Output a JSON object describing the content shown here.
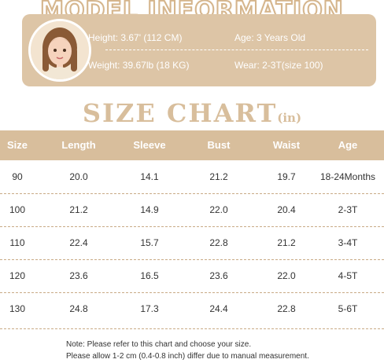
{
  "model": {
    "title": "MODEL INFORMATION",
    "height": "Height: 3.67' (112 CM)",
    "age": "Age: 3 Years Old",
    "weight": "Weight: 39.67lb (18 KG)",
    "wear": "Wear: 2-3T(size 100)",
    "photo_icon": "child-portrait-icon"
  },
  "size_chart": {
    "title": "SIZE  CHART",
    "unit": "(in)",
    "headers": [
      "Size",
      "Length",
      "Sleeve",
      "Bust",
      "Waist",
      "Age"
    ],
    "rows": [
      [
        "90",
        "20.0",
        "14.1",
        "21.2",
        "19.7",
        "18-24Months"
      ],
      [
        "100",
        "21.2",
        "14.9",
        "22.0",
        "20.4",
        "2-3T"
      ],
      [
        "110",
        "22.4",
        "15.7",
        "22.8",
        "21.2",
        "3-4T"
      ],
      [
        "120",
        "23.6",
        "16.5",
        "23.6",
        "22.0",
        "4-5T"
      ],
      [
        "130",
        "24.8",
        "17.3",
        "24.4",
        "22.8",
        "5-6T"
      ]
    ]
  },
  "notes": [
    "Note: Please refer to this chart and choose your size.",
    "Please allow 1-2 cm (0.4-0.8 inch) differ due to manual measurement."
  ],
  "colors": {
    "accent": "#d8be9c",
    "panel": "#ddc5a6"
  }
}
